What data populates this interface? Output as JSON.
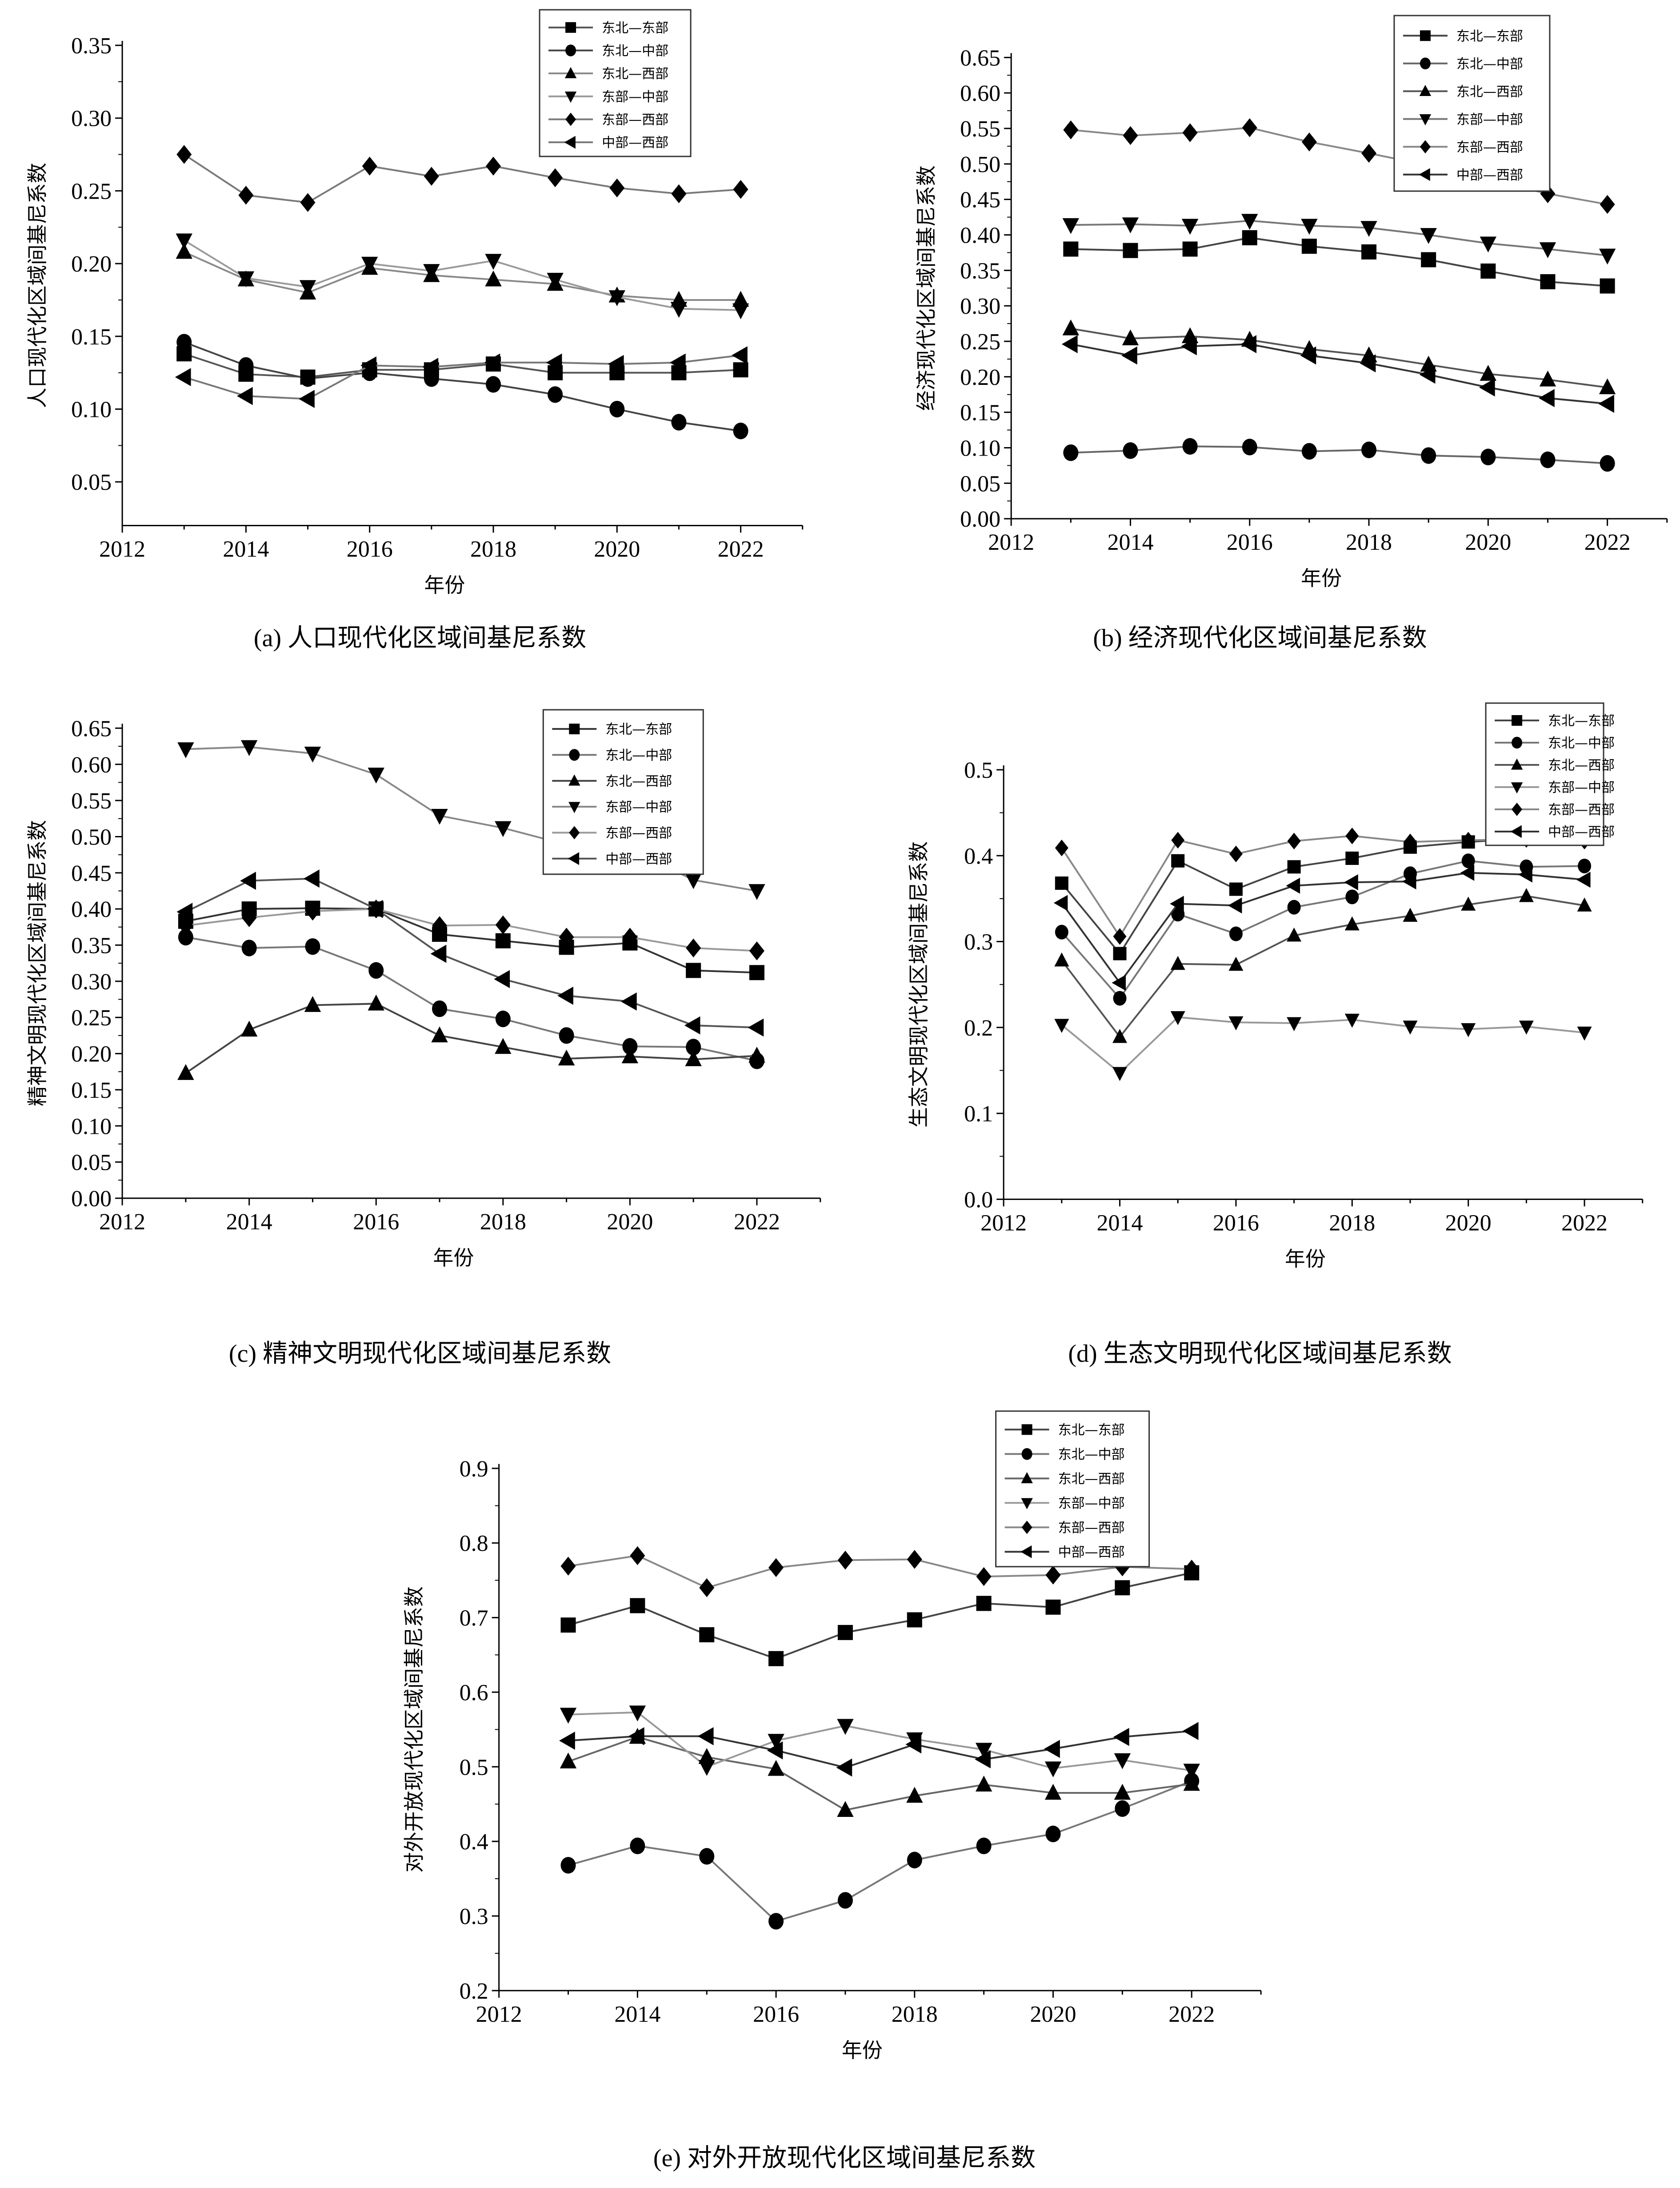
{
  "chart_data": [
    {
      "id": "a",
      "type": "line",
      "title": "(a) 人口现代化区域间基尼系数",
      "xlabel": "年份",
      "ylabel": "人口现代化区域间基尼系数",
      "x": [
        2013,
        2014,
        2015,
        2016,
        2017,
        2018,
        2019,
        2020,
        2021,
        2022
      ],
      "xlim": [
        2012,
        2023
      ],
      "xticks": [
        "2012",
        "2014",
        "2016",
        "2018",
        "2020",
        "2022"
      ],
      "ylim": [
        0.02,
        0.35
      ],
      "yticks": [
        "0.05",
        "0.10",
        "0.15",
        "0.20",
        "0.25",
        "0.30",
        "0.35"
      ],
      "grid": false,
      "legend_position": "top-right",
      "series": [
        {
          "name": "东北—东部",
          "marker": "square",
          "color": "#555555",
          "values": [
            0.138,
            0.124,
            0.122,
            0.127,
            0.127,
            0.131,
            0.125,
            0.125,
            0.125,
            0.127
          ]
        },
        {
          "name": "东北—中部",
          "marker": "circle",
          "color": "#444444",
          "values": [
            0.146,
            0.13,
            0.121,
            0.125,
            0.121,
            0.117,
            0.11,
            0.1,
            0.091,
            0.085
          ]
        },
        {
          "name": "东北—西部",
          "marker": "triangle-up",
          "color": "#8a8a8a",
          "values": [
            0.208,
            0.189,
            0.18,
            0.197,
            0.192,
            0.189,
            0.186,
            0.178,
            0.175,
            0.175
          ]
        },
        {
          "name": "东部—中部",
          "marker": "triangle-down",
          "color": "#9a9a9a",
          "values": [
            0.216,
            0.19,
            0.184,
            0.2,
            0.195,
            0.202,
            0.189,
            0.177,
            0.169,
            0.168
          ]
        },
        {
          "name": "东部—西部",
          "marker": "diamond",
          "color": "#7a7a7a",
          "values": [
            0.275,
            0.247,
            0.242,
            0.267,
            0.26,
            0.267,
            0.259,
            0.252,
            0.248,
            0.251
          ]
        },
        {
          "name": "中部—西部",
          "marker": "triangle-left",
          "color": "#777777",
          "values": [
            0.122,
            0.109,
            0.107,
            0.13,
            0.129,
            0.132,
            0.132,
            0.131,
            0.132,
            0.137
          ]
        }
      ]
    },
    {
      "id": "b",
      "type": "line",
      "title": "(b) 经济现代化区域间基尼系数",
      "xlabel": "年份",
      "ylabel": "经济现代化区域间基尼系数",
      "x": [
        2013,
        2014,
        2015,
        2016,
        2017,
        2018,
        2019,
        2020,
        2021,
        2022
      ],
      "xlim": [
        2012,
        2023
      ],
      "xticks": [
        "2012",
        "2014",
        "2016",
        "2018",
        "2020",
        "2022"
      ],
      "ylim": [
        0.0,
        0.65
      ],
      "yticks": [
        "0.00",
        "0.05",
        "0.10",
        "0.15",
        "0.20",
        "0.25",
        "0.30",
        "0.35",
        "0.40",
        "0.45",
        "0.50",
        "0.55",
        "0.60",
        "0.65"
      ],
      "grid": false,
      "legend_position": "top-right",
      "series": [
        {
          "name": "东北—东部",
          "marker": "square",
          "color": "#444444",
          "values": [
            0.38,
            0.378,
            0.38,
            0.396,
            0.384,
            0.376,
            0.365,
            0.349,
            0.334,
            0.328
          ]
        },
        {
          "name": "东北—中部",
          "marker": "circle",
          "color": "#666666",
          "values": [
            0.093,
            0.096,
            0.102,
            0.101,
            0.095,
            0.097,
            0.089,
            0.087,
            0.083,
            0.078
          ]
        },
        {
          "name": "东北—西部",
          "marker": "triangle-up",
          "color": "#555555",
          "values": [
            0.268,
            0.254,
            0.257,
            0.252,
            0.239,
            0.23,
            0.217,
            0.204,
            0.196,
            0.185
          ]
        },
        {
          "name": "东部—中部",
          "marker": "triangle-down",
          "color": "#777777",
          "values": [
            0.414,
            0.415,
            0.413,
            0.42,
            0.413,
            0.41,
            0.4,
            0.388,
            0.38,
            0.371
          ]
        },
        {
          "name": "东部—西部",
          "marker": "diamond",
          "color": "#888888",
          "values": [
            0.548,
            0.54,
            0.544,
            0.551,
            0.531,
            0.515,
            0.498,
            0.478,
            0.458,
            0.443
          ]
        },
        {
          "name": "中部—西部",
          "marker": "triangle-left",
          "color": "#333333",
          "values": [
            0.246,
            0.23,
            0.243,
            0.246,
            0.23,
            0.219,
            0.203,
            0.185,
            0.17,
            0.162
          ]
        }
      ]
    },
    {
      "id": "c",
      "type": "line",
      "title": "(c) 精神文明现代化区域间基尼系数",
      "xlabel": "年份",
      "ylabel": "精神文明现代化区域间基尼系数",
      "x": [
        2013,
        2014,
        2015,
        2016,
        2017,
        2018,
        2019,
        2020,
        2021,
        2022
      ],
      "xlim": [
        2012,
        2023
      ],
      "xticks": [
        "2012",
        "2014",
        "2016",
        "2018",
        "2020",
        "2022"
      ],
      "ylim": [
        0.0,
        0.65
      ],
      "yticks": [
        "0.00",
        "0.05",
        "0.10",
        "0.15",
        "0.20",
        "0.25",
        "0.30",
        "0.35",
        "0.40",
        "0.45",
        "0.50",
        "0.55",
        "0.60",
        "0.65"
      ],
      "grid": false,
      "legend_position": "top-right",
      "series": [
        {
          "name": "东北—东部",
          "marker": "square",
          "color": "#333333",
          "values": [
            0.383,
            0.4,
            0.401,
            0.4,
            0.365,
            0.356,
            0.347,
            0.353,
            0.315,
            0.312
          ]
        },
        {
          "name": "东北—中部",
          "marker": "circle",
          "color": "#777777",
          "values": [
            0.361,
            0.346,
            0.348,
            0.315,
            0.262,
            0.248,
            0.225,
            0.21,
            0.209,
            0.19
          ]
        },
        {
          "name": "东北—西部",
          "marker": "triangle-up",
          "color": "#444444",
          "values": [
            0.173,
            0.233,
            0.267,
            0.269,
            0.225,
            0.209,
            0.193,
            0.196,
            0.192,
            0.197
          ]
        },
        {
          "name": "东部—中部",
          "marker": "triangle-down",
          "color": "#888888",
          "values": [
            0.621,
            0.624,
            0.615,
            0.586,
            0.529,
            0.512,
            0.489,
            0.484,
            0.44,
            0.425
          ]
        },
        {
          "name": "东部—西部",
          "marker": "diamond",
          "color": "#999999",
          "values": [
            0.377,
            0.388,
            0.397,
            0.4,
            0.377,
            0.378,
            0.361,
            0.361,
            0.346,
            0.342
          ]
        },
        {
          "name": "中部—西部",
          "marker": "triangle-left",
          "color": "#555555",
          "values": [
            0.396,
            0.439,
            0.442,
            0.4,
            0.338,
            0.303,
            0.28,
            0.272,
            0.239,
            0.236
          ]
        }
      ]
    },
    {
      "id": "d",
      "type": "line",
      "title": "(d) 生态文明现代化区域间基尼系数",
      "xlabel": "年份",
      "ylabel": "生态文明现代化区域间基尼系数",
      "x": [
        2013,
        2014,
        2015,
        2016,
        2017,
        2018,
        2019,
        2020,
        2021,
        2022
      ],
      "xlim": [
        2012,
        2023
      ],
      "xticks": [
        "2012",
        "2014",
        "2016",
        "2018",
        "2020",
        "2022"
      ],
      "ylim": [
        0.0,
        0.5
      ],
      "yticks": [
        "0.0",
        "0.1",
        "0.2",
        "0.3",
        "0.4",
        "0.5"
      ],
      "grid": false,
      "legend_position": "top-right",
      "series": [
        {
          "name": "东北—东部",
          "marker": "square",
          "color": "#444444",
          "values": [
            0.368,
            0.286,
            0.394,
            0.361,
            0.387,
            0.397,
            0.41,
            0.416,
            0.42,
            0.431
          ]
        },
        {
          "name": "东北—中部",
          "marker": "circle",
          "color": "#777777",
          "values": [
            0.311,
            0.234,
            0.332,
            0.309,
            0.34,
            0.352,
            0.379,
            0.394,
            0.387,
            0.388
          ]
        },
        {
          "name": "东北—西部",
          "marker": "triangle-up",
          "color": "#555555",
          "values": [
            0.278,
            0.189,
            0.274,
            0.273,
            0.307,
            0.32,
            0.33,
            0.343,
            0.353,
            0.342
          ]
        },
        {
          "name": "东部—中部",
          "marker": "triangle-down",
          "color": "#999999",
          "values": [
            0.203,
            0.147,
            0.212,
            0.206,
            0.205,
            0.209,
            0.201,
            0.198,
            0.201,
            0.194
          ]
        },
        {
          "name": "东部—西部",
          "marker": "diamond",
          "color": "#888888",
          "values": [
            0.409,
            0.306,
            0.418,
            0.402,
            0.417,
            0.423,
            0.416,
            0.418,
            0.419,
            0.417
          ]
        },
        {
          "name": "中部—西部",
          "marker": "triangle-left",
          "color": "#333333",
          "values": [
            0.345,
            0.252,
            0.344,
            0.342,
            0.365,
            0.369,
            0.37,
            0.38,
            0.378,
            0.372
          ]
        }
      ]
    },
    {
      "id": "e",
      "type": "line",
      "title": "(e) 对外开放现代化区域间基尼系数",
      "xlabel": "年份",
      "ylabel": "对外开放现代化区域间基尼系数",
      "x": [
        2013,
        2014,
        2015,
        2016,
        2017,
        2018,
        2019,
        2020,
        2021,
        2022
      ],
      "xlim": [
        2012,
        2023
      ],
      "xticks": [
        "2012",
        "2014",
        "2016",
        "2018",
        "2020",
        "2022"
      ],
      "ylim": [
        0.2,
        0.9
      ],
      "yticks": [
        "0.2",
        "0.3",
        "0.4",
        "0.5",
        "0.6",
        "0.7",
        "0.8",
        "0.9"
      ],
      "grid": false,
      "legend_position": "top-right",
      "series": [
        {
          "name": "东北—东部",
          "marker": "square",
          "color": "#444444",
          "values": [
            0.69,
            0.716,
            0.677,
            0.645,
            0.68,
            0.697,
            0.719,
            0.714,
            0.74,
            0.76
          ]
        },
        {
          "name": "东北—中部",
          "marker": "circle",
          "color": "#777777",
          "values": [
            0.368,
            0.394,
            0.38,
            0.293,
            0.321,
            0.375,
            0.394,
            0.41,
            0.444,
            0.481
          ]
        },
        {
          "name": "东北—西部",
          "marker": "triangle-up",
          "color": "#666666",
          "values": [
            0.507,
            0.54,
            0.513,
            0.497,
            0.442,
            0.461,
            0.476,
            0.465,
            0.465,
            0.477
          ]
        },
        {
          "name": "东部—中部",
          "marker": "triangle-down",
          "color": "#999999",
          "values": [
            0.57,
            0.573,
            0.5,
            0.535,
            0.555,
            0.537,
            0.523,
            0.498,
            0.509,
            0.495
          ]
        },
        {
          "name": "东部—西部",
          "marker": "diamond",
          "color": "#888888",
          "values": [
            0.769,
            0.783,
            0.74,
            0.767,
            0.777,
            0.778,
            0.755,
            0.757,
            0.768,
            0.765
          ]
        },
        {
          "name": "中部—西部",
          "marker": "triangle-left",
          "color": "#333333",
          "values": [
            0.535,
            0.541,
            0.541,
            0.522,
            0.499,
            0.53,
            0.51,
            0.524,
            0.54,
            0.548
          ]
        }
      ]
    }
  ]
}
